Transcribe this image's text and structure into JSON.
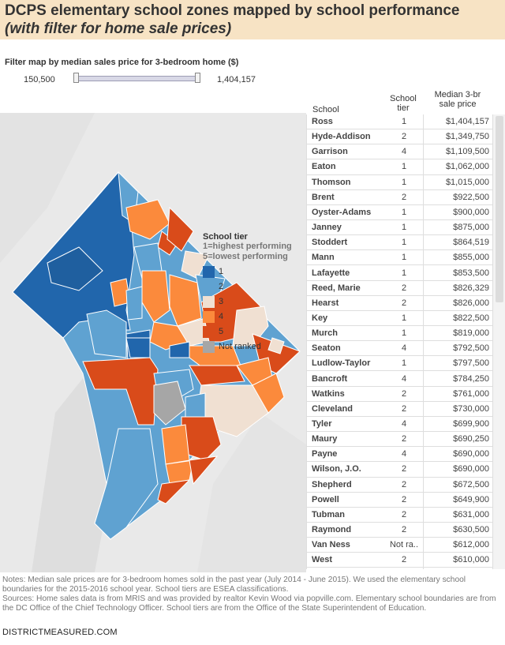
{
  "header": {
    "title_line1": "DCPS elementary school zones mapped by school performance",
    "title_line2": "(with filter for home sale prices)"
  },
  "filter": {
    "label": "Filter map by median sales price for 3-bedroom home ($)",
    "min_value": "150,500",
    "max_value": "1,404,157"
  },
  "legend": {
    "title": "School tier",
    "subtitle1": "1=highest performing",
    "subtitle2": "5=lowest performing",
    "items": [
      {
        "label": "1",
        "color": "#2166ac"
      },
      {
        "label": "2",
        "color": "#5fa2d1"
      },
      {
        "label": "3",
        "color": "#f0e0d2"
      },
      {
        "label": "4",
        "color": "#fb8a3c"
      },
      {
        "label": "5",
        "color": "#d94b1a"
      },
      {
        "label": "Not ranked",
        "color": "#a6a6a6"
      }
    ]
  },
  "table": {
    "headers": {
      "school": "School",
      "tier_line1": "School",
      "tier_line2": "tier",
      "price_line1": "Median 3-br",
      "price_line2": "sale price"
    },
    "rows": [
      {
        "school": "Ross",
        "tier": "1",
        "price": "$1,404,157"
      },
      {
        "school": "Hyde-Addison",
        "tier": "2",
        "price": "$1,349,750"
      },
      {
        "school": "Garrison",
        "tier": "4",
        "price": "$1,109,500"
      },
      {
        "school": "Eaton",
        "tier": "1",
        "price": "$1,062,000"
      },
      {
        "school": "Thomson",
        "tier": "1",
        "price": "$1,015,000"
      },
      {
        "school": "Brent",
        "tier": "2",
        "price": "$922,500"
      },
      {
        "school": "Oyster-Adams",
        "tier": "1",
        "price": "$900,000"
      },
      {
        "school": "Janney",
        "tier": "1",
        "price": "$875,000"
      },
      {
        "school": "Stoddert",
        "tier": "1",
        "price": "$864,519"
      },
      {
        "school": "Mann",
        "tier": "1",
        "price": "$855,000"
      },
      {
        "school": "Lafayette",
        "tier": "1",
        "price": "$853,500"
      },
      {
        "school": "Reed, Marie",
        "tier": "2",
        "price": "$826,329"
      },
      {
        "school": "Hearst",
        "tier": "2",
        "price": "$826,000"
      },
      {
        "school": "Key",
        "tier": "1",
        "price": "$822,500"
      },
      {
        "school": "Murch",
        "tier": "1",
        "price": "$819,000"
      },
      {
        "school": "Seaton",
        "tier": "4",
        "price": "$792,500"
      },
      {
        "school": "Ludlow-Taylor",
        "tier": "1",
        "price": "$797,500"
      },
      {
        "school": "Bancroft",
        "tier": "4",
        "price": "$784,250"
      },
      {
        "school": "Watkins",
        "tier": "2",
        "price": "$761,000"
      },
      {
        "school": "Cleveland",
        "tier": "2",
        "price": "$730,000"
      },
      {
        "school": "Tyler",
        "tier": "4",
        "price": "$699,900"
      },
      {
        "school": "Maury",
        "tier": "2",
        "price": "$690,250"
      },
      {
        "school": "Payne",
        "tier": "4",
        "price": "$690,000"
      },
      {
        "school": "Wilson, J.O.",
        "tier": "2",
        "price": "$690,000"
      },
      {
        "school": "Shepherd",
        "tier": "2",
        "price": "$672,500"
      },
      {
        "school": "Powell",
        "tier": "2",
        "price": "$649,900"
      },
      {
        "school": "Tubman",
        "tier": "2",
        "price": "$631,000"
      },
      {
        "school": "Raymond",
        "tier": "2",
        "price": "$630,500"
      },
      {
        "school": "Van Ness",
        "tier": "Not ra..",
        "price": "$612,000"
      },
      {
        "school": "West",
        "tier": "2",
        "price": "$610,000"
      }
    ]
  },
  "notes": {
    "line1": "Notes: Median sale prices are for 3-bedroom homes sold in the past year (July 2014 - June 2015). We used the elementary school boundaries for the 2015-2016 school year. School tiers are ESEA classifications.",
    "line2": "Sources: Home sales data is from MRIS and was provided by realtor Kevin Wood via popville.com. Elementary school boundaries are from the DC Office of the Chief Technology Officer. School tiers are from the Office of the State Superintendent of Education."
  },
  "footer": {
    "site": "DISTRICTMEASURED.COM"
  }
}
